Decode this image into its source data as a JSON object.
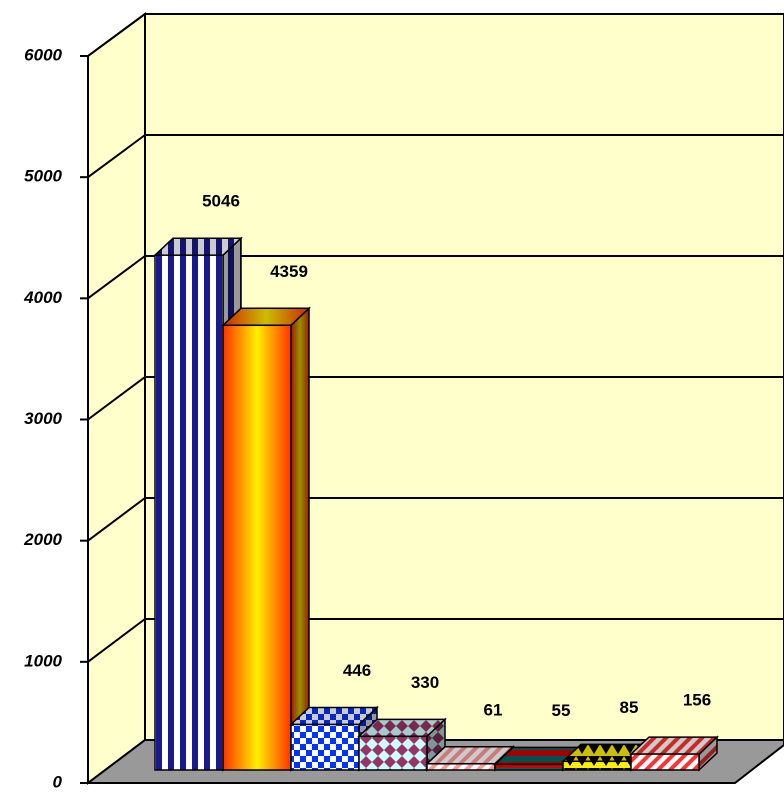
{
  "chart_data": {
    "type": "bar3d",
    "values": [
      5046,
      4359,
      446,
      330,
      61,
      55,
      85,
      156
    ],
    "colors": [
      "#1a1a8c",
      "#ff3300",
      "#0033ff",
      "#993366",
      "#ff9999",
      "#006666",
      "#000000",
      "#ff3333"
    ],
    "ylim": [
      0,
      6000
    ],
    "yticks": [
      0,
      1000,
      2000,
      3000,
      4000,
      5000,
      6000
    ],
    "grid": true
  }
}
